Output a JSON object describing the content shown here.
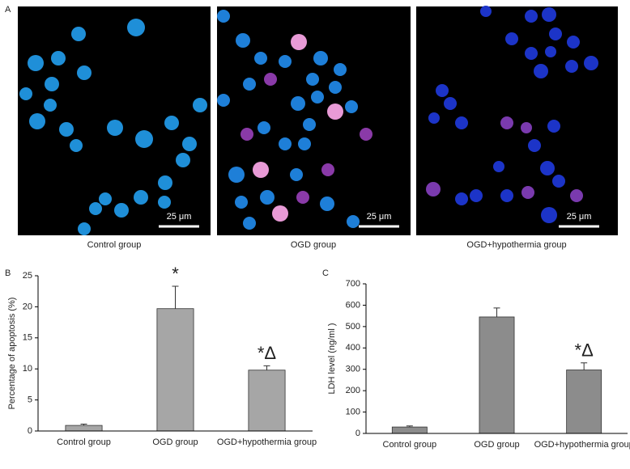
{
  "panel_a": {
    "label": "A",
    "images": [
      {
        "scale_bar": "25 μm",
        "caption": "Control group"
      },
      {
        "scale_bar": "25 μm",
        "caption": "OGD group"
      },
      {
        "scale_bar": "25 μm",
        "caption": "OGD+hypothermia group"
      }
    ]
  },
  "chart_data": [
    {
      "type": "bar",
      "panel": "B",
      "y_label": "Percentage of apoptosis (%)",
      "categories": [
        "Control group",
        "OGD group",
        "OGD+hypothermia group"
      ],
      "values": [
        0.9,
        19.7,
        9.8
      ],
      "errors": [
        0.2,
        3.6,
        0.7
      ],
      "annotations": [
        null,
        "*",
        "*Δ"
      ],
      "color": "#a6a6a6",
      "ylim": [
        0,
        25
      ],
      "yticks": [
        0,
        5,
        10,
        15,
        20,
        25
      ]
    },
    {
      "type": "bar",
      "panel": "C",
      "y_label": "LDH level (ng/ml )",
      "categories": [
        "Control group",
        "OGD group",
        "OGD+hypothermia group"
      ],
      "values": [
        30,
        545,
        297
      ],
      "errors": [
        5,
        42,
        33
      ],
      "annotations": [
        null,
        null,
        "*Δ"
      ],
      "color": "#8c8c8c",
      "ylim": [
        0,
        700
      ],
      "yticks": [
        0,
        100,
        200,
        300,
        400,
        500,
        600,
        700
      ]
    }
  ]
}
